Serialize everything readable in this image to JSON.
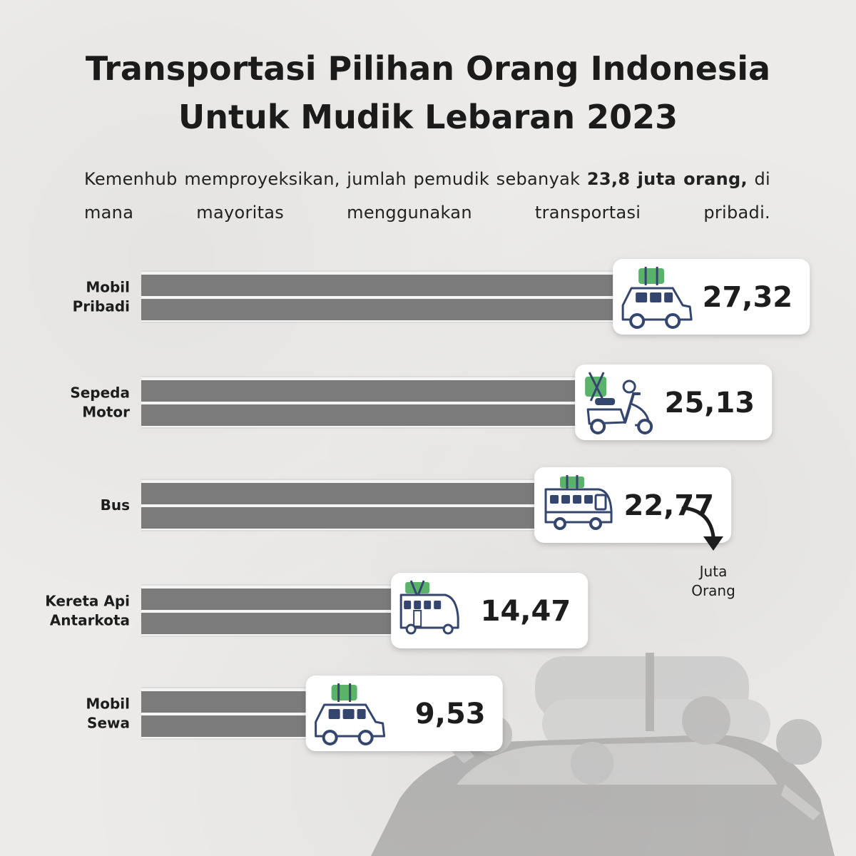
{
  "header": {
    "title_line1": "Transportasi Pilihan Orang Indonesia",
    "title_line2": "Untuk Mudik Lebaran 2023",
    "subtitle_pre": "Kemenhub memproyeksikan, jumlah pemudik sebanyak ",
    "subtitle_bold": "23,8 juta orang,",
    "subtitle_post": " di mana mayoritas menggunakan transportasi pribadi."
  },
  "unit_label": {
    "line1": "Juta",
    "line2": "Orang"
  },
  "colors": {
    "road": "#7b7b7b",
    "road_edge": "#f4f4f4",
    "card": "#ffffff",
    "icon_navy": "#34466e",
    "luggage_green": "#5bb36b"
  },
  "chart_data": {
    "type": "bar",
    "orientation": "horizontal",
    "categories": [
      [
        "Mobil",
        "Pribadi"
      ],
      [
        "Sepeda",
        "Motor"
      ],
      [
        "Bus"
      ],
      [
        "Kereta Api",
        "Antarkota"
      ],
      [
        "Mobil",
        "Sewa"
      ]
    ],
    "values": [
      27.32,
      25.13,
      22.77,
      14.47,
      9.53
    ],
    "value_labels": [
      "27,32",
      "25,13",
      "22,77",
      "14,47",
      "9,53"
    ],
    "icons": [
      "car-icon",
      "scooter-icon",
      "bus-icon",
      "train-icon",
      "car-icon"
    ],
    "unit": "Juta Orang"
  }
}
